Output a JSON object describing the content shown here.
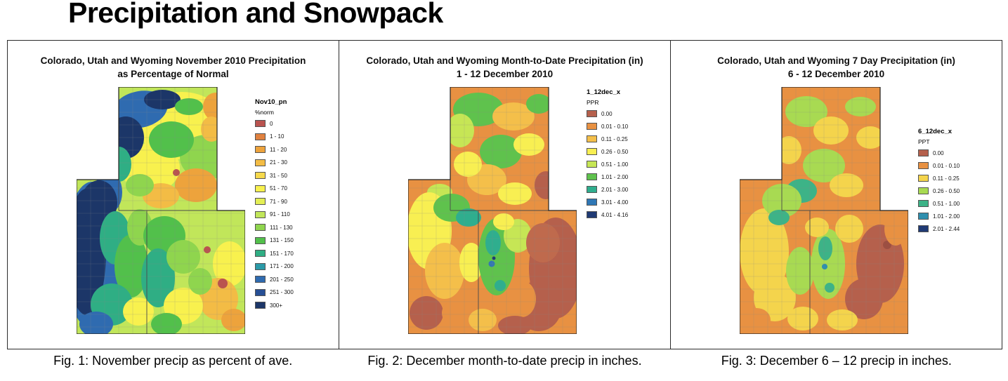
{
  "page": {
    "title": "Precipitation and Snowpack"
  },
  "panels": [
    {
      "title_line1": "Colorado, Utah and Wyoming November 2010 Precipitation",
      "title_line2": "as Percentage of Normal",
      "legend": {
        "title": "Nov10_pn",
        "subtitle": "%norm",
        "items": [
          {
            "label": "0",
            "color": "#b9534f"
          },
          {
            "label": "1 - 10",
            "color": "#e0813f"
          },
          {
            "label": "11 - 20",
            "color": "#eda33c"
          },
          {
            "label": "21 - 30",
            "color": "#f3bc45"
          },
          {
            "label": "31 - 50",
            "color": "#f6d94c"
          },
          {
            "label": "51 - 70",
            "color": "#f8f14e"
          },
          {
            "label": "71 - 90",
            "color": "#e4ef55"
          },
          {
            "label": "91 - 110",
            "color": "#c1e65a"
          },
          {
            "label": "111 - 130",
            "color": "#8fd54e"
          },
          {
            "label": "131 - 150",
            "color": "#52c04b"
          },
          {
            "label": "151 - 170",
            "color": "#2fae84"
          },
          {
            "label": "171 - 200",
            "color": "#2b9aa8"
          },
          {
            "label": "201 - 250",
            "color": "#2f6bb0"
          },
          {
            "label": "251 - 300",
            "color": "#274f95"
          },
          {
            "label": "300+",
            "color": "#1c3668"
          }
        ]
      },
      "caption": "Fig. 1: November precip as percent of ave."
    },
    {
      "title_line1": "Colorado, Utah and Wyoming Month-to-Date Precipitation (in)",
      "title_line2": "1 - 12 December 2010",
      "legend": {
        "title": "1_12dec_x",
        "subtitle": "PPR",
        "items": [
          {
            "label": "0.00",
            "color": "#b5604c"
          },
          {
            "label": "0.01 - 0.10",
            "color": "#e89142"
          },
          {
            "label": "0.11 - 0.25",
            "color": "#f4bf4a"
          },
          {
            "label": "0.26 - 0.50",
            "color": "#f8ef52"
          },
          {
            "label": "0.51 - 1.00",
            "color": "#c6e655"
          },
          {
            "label": "1.01 - 2.00",
            "color": "#5fc24d"
          },
          {
            "label": "2.01 - 3.00",
            "color": "#2fae8e"
          },
          {
            "label": "3.01 - 4.00",
            "color": "#2f77b5"
          },
          {
            "label": "4.01 - 4.16",
            "color": "#203a74"
          }
        ]
      },
      "caption": "Fig. 2: December month-to-date precip in inches."
    },
    {
      "title_line1": "Colorado, Utah and Wyoming 7 Day Precipitation (in)",
      "title_line2": "6 - 12 December 2010",
      "legend": {
        "title": "6_12dec_x",
        "subtitle": "PPT",
        "items": [
          {
            "label": "0.00",
            "color": "#b5604c"
          },
          {
            "label": "0.01 - 0.10",
            "color": "#e89142"
          },
          {
            "label": "0.11 - 0.25",
            "color": "#f4d44c"
          },
          {
            "label": "0.26 - 0.50",
            "color": "#a8da52"
          },
          {
            "label": "0.51 - 1.00",
            "color": "#3db387"
          },
          {
            "label": "1.01 - 2.00",
            "color": "#2f8fae"
          },
          {
            "label": "2.01 - 2.44",
            "color": "#203a74"
          }
        ]
      },
      "caption": "Fig. 3: December 6 – 12 precip in inches."
    }
  ]
}
